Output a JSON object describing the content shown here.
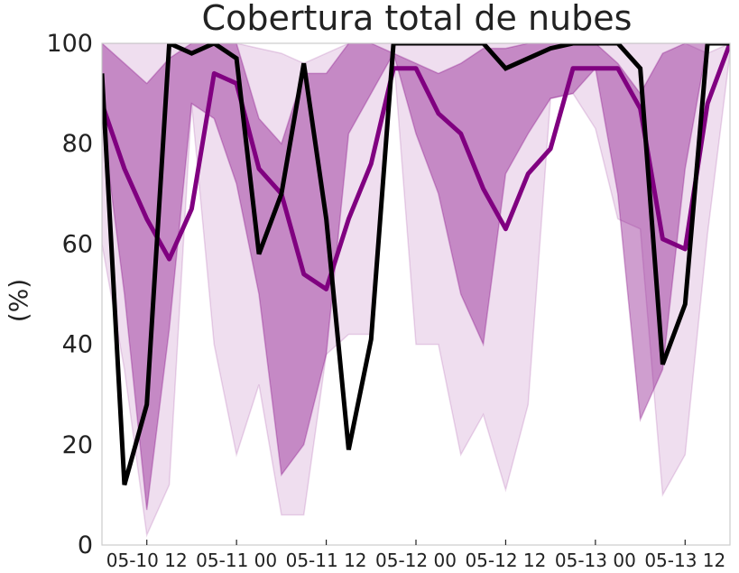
{
  "chart_data": {
    "type": "area",
    "title": "Cobertura total de nubes",
    "xlabel": "",
    "ylabel": "(%)",
    "ylim": [
      0,
      100
    ],
    "yticks": [
      "0",
      "20",
      "40",
      "60",
      "80",
      "100"
    ],
    "xlim": [
      "05-10 06",
      "05-13 18"
    ],
    "xticks": [
      {
        "x": "05-10 12",
        "label": "05-10 12"
      },
      {
        "x": "05-11 00",
        "label": "05-11 00"
      },
      {
        "x": "05-11 12",
        "label": "05-11 12"
      },
      {
        "x": "05-12 00",
        "label": "05-12 00"
      },
      {
        "x": "05-12 12",
        "label": "05-12 12"
      },
      {
        "x": "05-13 00",
        "label": "05-13 00"
      },
      {
        "x": "05-13 12",
        "label": "05-13 12"
      }
    ],
    "grid": false,
    "legend": "none",
    "x": [
      "05-10 06",
      "05-10 09",
      "05-10 12",
      "05-10 15",
      "05-10 18",
      "05-10 21",
      "05-11 00",
      "05-11 03",
      "05-11 06",
      "05-11 09",
      "05-11 12",
      "05-11 15",
      "05-11 18",
      "05-11 21",
      "05-12 00",
      "05-12 03",
      "05-12 06",
      "05-12 09",
      "05-12 12",
      "05-12 15",
      "05-12 18",
      "05-12 21",
      "05-13 00",
      "05-13 03",
      "05-13 06",
      "05-13 09",
      "05-13 12",
      "05-13 15",
      "05-13 18"
    ],
    "series": [
      {
        "color": "#800080",
        "role": "outer-band",
        "lower": [
          60,
          35,
          2,
          12,
          88,
          40,
          18,
          32,
          6,
          6,
          38,
          42,
          42,
          98,
          40,
          40,
          18,
          26,
          11,
          28,
          89,
          90,
          83,
          65,
          63,
          10,
          18,
          62,
          98
        ],
        "upper": [
          100,
          100,
          100,
          100,
          100,
          100,
          100,
          99,
          98,
          96,
          98,
          100,
          100,
          100,
          100,
          100,
          100,
          100,
          100,
          100,
          100,
          100,
          100,
          100,
          100,
          100,
          100,
          98,
          100
        ]
      },
      {
        "color": "#800080",
        "role": "inner-band",
        "lower": [
          85,
          50,
          7,
          43,
          88,
          85,
          72,
          50,
          14,
          20,
          38,
          82,
          90,
          98,
          82,
          70,
          50,
          40,
          74,
          82,
          89,
          90,
          95,
          70,
          25,
          35,
          75,
          100,
          100
        ],
        "upper": [
          100,
          96,
          92,
          97,
          100,
          100,
          100,
          85,
          80,
          94,
          94,
          100,
          100,
          98,
          96,
          94,
          96,
          99,
          99,
          100,
          100,
          100,
          100,
          96,
          90,
          98,
          100,
          100,
          100
        ]
      },
      {
        "color": "#800080",
        "role": "median",
        "values": [
          88,
          75,
          65,
          57,
          67,
          94,
          92,
          75,
          70,
          54,
          51,
          65,
          76,
          95,
          95,
          86,
          82,
          71,
          63,
          74,
          79,
          95,
          95,
          95,
          87,
          61,
          59,
          88,
          100
        ]
      },
      {
        "color": "#000000",
        "role": "observed",
        "values": [
          94,
          12,
          28,
          100,
          98,
          100,
          97,
          58,
          70,
          96,
          65,
          19,
          41,
          100,
          100,
          100,
          100,
          100,
          95,
          97,
          99,
          100,
          100,
          100,
          95,
          36,
          48,
          100,
          100
        ]
      }
    ]
  }
}
